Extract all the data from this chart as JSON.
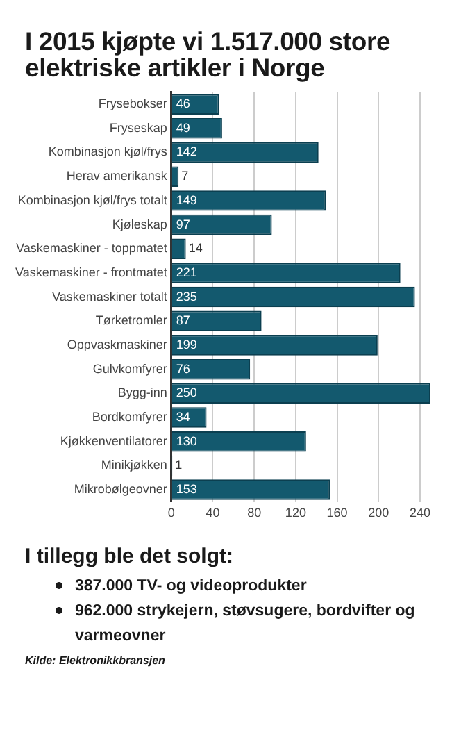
{
  "chart_data": {
    "type": "bar",
    "orientation": "horizontal",
    "title": "I 2015 kjøpte vi 1.517.000 store elektriske artikler i Norge",
    "categories": [
      "Frysebokser",
      "Fryseskap",
      "Kombinasjon kjøl/frys",
      "Herav amerikansk",
      "Kombinasjon kjøl/frys totalt",
      "Kjøleskap",
      "Vaskemaskiner - toppmatet",
      "Vaskemaskiner - frontmatet",
      "Vaskemaskiner totalt",
      "Tørketromler",
      "Oppvaskmaskiner",
      "Gulvkomfyrer",
      "Bygg-inn",
      "Bordkomfyrer",
      "Kjøkkenventilatorer",
      "Minikjøkken",
      "Mikrobølgeovner"
    ],
    "values": [
      46,
      49,
      142,
      7,
      149,
      97,
      14,
      221,
      235,
      87,
      199,
      76,
      250,
      34,
      130,
      1,
      153
    ],
    "color": "#13596e",
    "xlim": [
      0,
      250
    ],
    "xticks": [
      0,
      40,
      80,
      120,
      160,
      200,
      240
    ],
    "grid": "x",
    "legend": false,
    "data_labels": true,
    "annotations": [
      "I tillegg ble det solgt:",
      "387.000 TV- og videoprodukter",
      "962.000 strykejern, støvsugere, bordvifter og varmeovner",
      "Kilde: Elektronikkbransjen"
    ]
  }
}
